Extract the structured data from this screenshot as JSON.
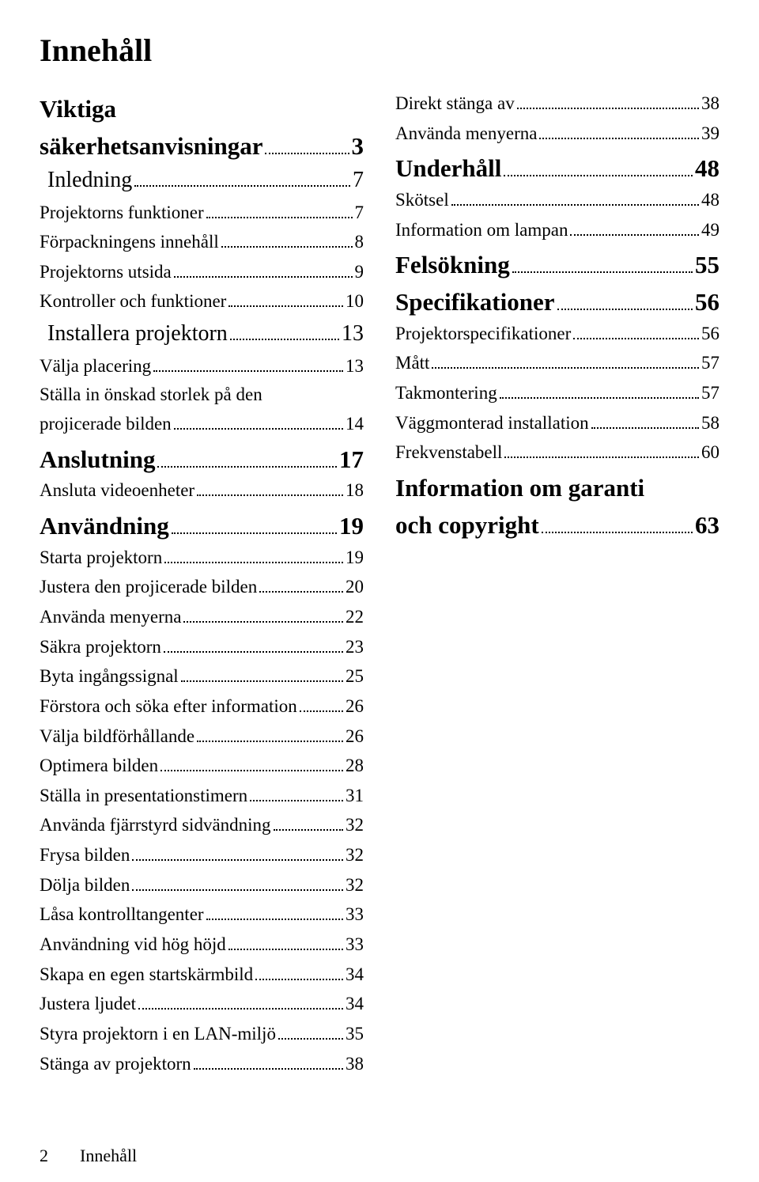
{
  "title": "Innehåll",
  "footer": {
    "page_number": "2",
    "label": "Innehåll"
  },
  "columns": [
    {
      "entries": [
        {
          "type": "h1-multi",
          "lines": [
            "Viktiga",
            "säkerhetsanvisningar"
          ],
          "page": "3"
        },
        {
          "type": "h2",
          "indent": true,
          "label": "Inledning",
          "page": "7"
        },
        {
          "type": "body",
          "label": "Projektorns funktioner",
          "page": "7"
        },
        {
          "type": "body",
          "label": "Förpackningens innehåll",
          "page": "8"
        },
        {
          "type": "body",
          "label": "Projektorns utsida",
          "page": "9"
        },
        {
          "type": "body",
          "label": "Kontroller och funktioner",
          "page": "10"
        },
        {
          "type": "h2",
          "indent": true,
          "label": "Installera projektorn",
          "page": "13"
        },
        {
          "type": "body",
          "label": "Välja placering",
          "page": "13"
        },
        {
          "type": "body-multi",
          "lines": [
            "Ställa in önskad storlek på den",
            "projicerade bilden"
          ],
          "page": "14"
        },
        {
          "type": "h1",
          "label": "Anslutning",
          "page": "17"
        },
        {
          "type": "body",
          "label": "Ansluta videoenheter",
          "page": "18"
        },
        {
          "type": "h1",
          "label": "Användning",
          "page": "19"
        },
        {
          "type": "body",
          "label": "Starta projektorn",
          "page": "19"
        },
        {
          "type": "body",
          "label": "Justera den projicerade bilden",
          "page": "20"
        },
        {
          "type": "body",
          "label": "Använda menyerna",
          "page": "22"
        },
        {
          "type": "body",
          "label": "Säkra projektorn",
          "page": "23"
        },
        {
          "type": "body",
          "label": "Byta ingångssignal",
          "page": "25"
        },
        {
          "type": "body",
          "label": "Förstora och söka efter information",
          "page": "26"
        },
        {
          "type": "body",
          "label": "Välja bildförhållande",
          "page": "26"
        },
        {
          "type": "body",
          "label": "Optimera bilden",
          "page": "28"
        },
        {
          "type": "body",
          "label": "Ställa in presentationstimern",
          "page": "31"
        },
        {
          "type": "body",
          "label": "Använda fjärrstyrd sidvändning",
          "page": "32"
        },
        {
          "type": "body",
          "label": "Frysa bilden",
          "page": "32"
        },
        {
          "type": "body",
          "label": "Dölja bilden",
          "page": "32"
        },
        {
          "type": "body",
          "label": "Låsa kontrolltangenter",
          "page": "33"
        },
        {
          "type": "body",
          "label": "Användning vid hög höjd",
          "page": "33"
        },
        {
          "type": "body",
          "label": "Skapa en egen startskärmbild",
          "page": "34"
        },
        {
          "type": "body",
          "label": "Justera ljudet",
          "page": "34"
        },
        {
          "type": "body",
          "label": "Styra projektorn i en LAN-miljö",
          "page": "35"
        },
        {
          "type": "body",
          "label": "Stänga av projektorn",
          "page": "38"
        }
      ]
    },
    {
      "entries": [
        {
          "type": "body",
          "label": "Direkt stänga av",
          "page": "38"
        },
        {
          "type": "body",
          "label": "Använda menyerna",
          "page": "39"
        },
        {
          "type": "h1",
          "label": "Underhåll",
          "page": "48"
        },
        {
          "type": "body",
          "label": "Skötsel",
          "page": "48"
        },
        {
          "type": "body",
          "label": "Information om lampan",
          "page": "49"
        },
        {
          "type": "h1",
          "label": "Felsökning",
          "page": "55"
        },
        {
          "type": "h1",
          "label": "Specifikationer",
          "page": "56"
        },
        {
          "type": "body",
          "label": "Projektorspecifikationer",
          "page": "56"
        },
        {
          "type": "body",
          "label": "Mått",
          "page": "57"
        },
        {
          "type": "body",
          "label": "Takmontering",
          "page": "57"
        },
        {
          "type": "body",
          "label": "Väggmonterad installation",
          "page": "58"
        },
        {
          "type": "body",
          "label": "Frekvenstabell",
          "page": "60"
        },
        {
          "type": "h1-multi",
          "lines": [
            "Information om garanti",
            "och copyright"
          ],
          "page": "63"
        }
      ]
    }
  ]
}
